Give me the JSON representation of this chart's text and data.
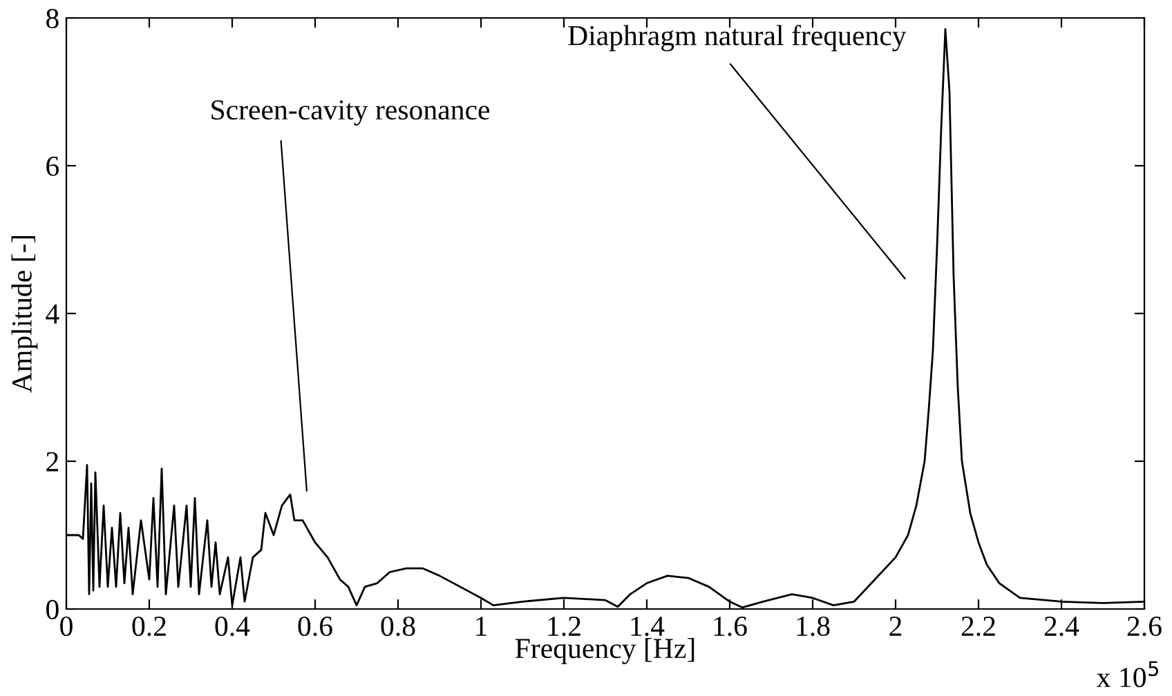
{
  "chart_data": {
    "type": "line",
    "xlabel": "Frequency [Hz]",
    "ylabel": "Amplitude [-]",
    "x": [
      0,
      0.03,
      0.04,
      0.05,
      0.055,
      0.06,
      0.065,
      0.07,
      0.08,
      0.09,
      0.1,
      0.11,
      0.12,
      0.13,
      0.14,
      0.15,
      0.16,
      0.18,
      0.2,
      0.21,
      0.22,
      0.23,
      0.24,
      0.26,
      0.27,
      0.29,
      0.3,
      0.31,
      0.32,
      0.34,
      0.35,
      0.36,
      0.37,
      0.39,
      0.4,
      0.42,
      0.43,
      0.45,
      0.47,
      0.48,
      0.5,
      0.52,
      0.54,
      0.55,
      0.57,
      0.6,
      0.63,
      0.66,
      0.68,
      0.7,
      0.72,
      0.75,
      0.78,
      0.82,
      0.86,
      0.9,
      0.95,
      1.0,
      1.03,
      1.1,
      1.2,
      1.3,
      1.33,
      1.36,
      1.4,
      1.45,
      1.5,
      1.55,
      1.6,
      1.63,
      1.68,
      1.75,
      1.8,
      1.85,
      1.9,
      1.95,
      2.0,
      2.03,
      2.05,
      2.07,
      2.08,
      2.09,
      2.1,
      2.11,
      2.12,
      2.13,
      2.14,
      2.15,
      2.16,
      2.18,
      2.2,
      2.22,
      2.25,
      2.3,
      2.4,
      2.5,
      2.6
    ],
    "series": [
      {
        "color": "#000000",
        "values": [
          1.0,
          1.0,
          0.95,
          1.95,
          0.2,
          1.7,
          0.25,
          1.85,
          0.3,
          1.4,
          0.3,
          1.1,
          0.3,
          1.3,
          0.35,
          1.1,
          0.2,
          1.2,
          0.4,
          1.5,
          0.3,
          1.9,
          0.2,
          1.4,
          0.3,
          1.4,
          0.3,
          1.5,
          0.2,
          1.2,
          0.3,
          0.9,
          0.2,
          0.7,
          0.05,
          0.7,
          0.1,
          0.7,
          0.8,
          1.3,
          1.0,
          1.4,
          1.55,
          1.2,
          1.2,
          0.9,
          0.7,
          0.4,
          0.3,
          0.05,
          0.3,
          0.35,
          0.5,
          0.55,
          0.55,
          0.45,
          0.3,
          0.15,
          0.05,
          0.1,
          0.15,
          0.12,
          0.03,
          0.2,
          0.35,
          0.45,
          0.42,
          0.3,
          0.1,
          0.02,
          0.1,
          0.2,
          0.15,
          0.05,
          0.1,
          0.4,
          0.7,
          1.0,
          1.4,
          2.0,
          2.7,
          3.5,
          4.9,
          6.5,
          7.85,
          7.0,
          4.5,
          3.0,
          2.0,
          1.3,
          0.9,
          0.6,
          0.35,
          0.15,
          0.1,
          0.08,
          0.1
        ]
      }
    ],
    "xlim": [
      0,
      2.6
    ],
    "xticks": [
      0,
      0.2,
      0.4,
      0.6,
      0.8,
      1,
      1.2,
      1.4,
      1.6,
      1.8,
      2,
      2.2,
      2.4,
      2.6
    ],
    "ylim": [
      0,
      8
    ],
    "yticks": [
      0,
      2,
      4,
      6,
      8
    ],
    "annotations": [
      "Screen-cavity resonance",
      "Diaphragm natural frequency",
      "x 10$^{5}$"
    ],
    "grid": false,
    "legend": false,
    "marker": "none",
    "line_style": "solid"
  }
}
